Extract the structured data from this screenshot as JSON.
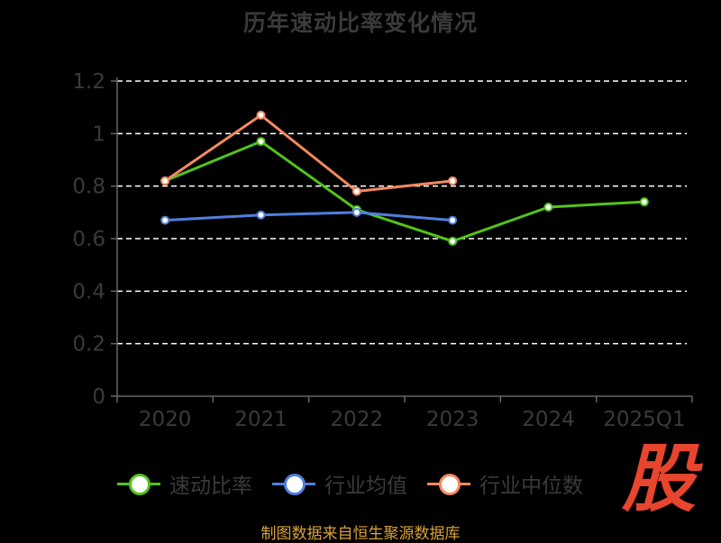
{
  "title": "历年速动比率变化情况",
  "source_note": "制图数据来自恒生聚源数据库",
  "brand_glyph": "股",
  "chart_data": {
    "type": "line",
    "title": "历年速动比率变化情况",
    "xlabel": "",
    "ylabel": "",
    "categories": [
      "2020",
      "2021",
      "2022",
      "2023",
      "2024",
      "2025Q1"
    ],
    "y_ticks": [
      "0",
      "0.2",
      "0.4",
      "0.6",
      "0.8",
      "1",
      "1.2"
    ],
    "ylim": [
      0,
      1.2
    ],
    "grid": "horizontal dashed",
    "legend_position": "bottom",
    "series": [
      {
        "name": "速动比率",
        "color": "#52c41a",
        "values": [
          0.82,
          0.97,
          0.71,
          0.59,
          0.72,
          0.74
        ]
      },
      {
        "name": "行业均值",
        "color": "#4f7fde",
        "values": [
          0.67,
          0.69,
          0.7,
          0.67,
          null,
          null
        ]
      },
      {
        "name": "行业中位数",
        "color": "#f4895f",
        "values": [
          0.82,
          1.07,
          0.78,
          0.82,
          null,
          null
        ]
      }
    ]
  }
}
